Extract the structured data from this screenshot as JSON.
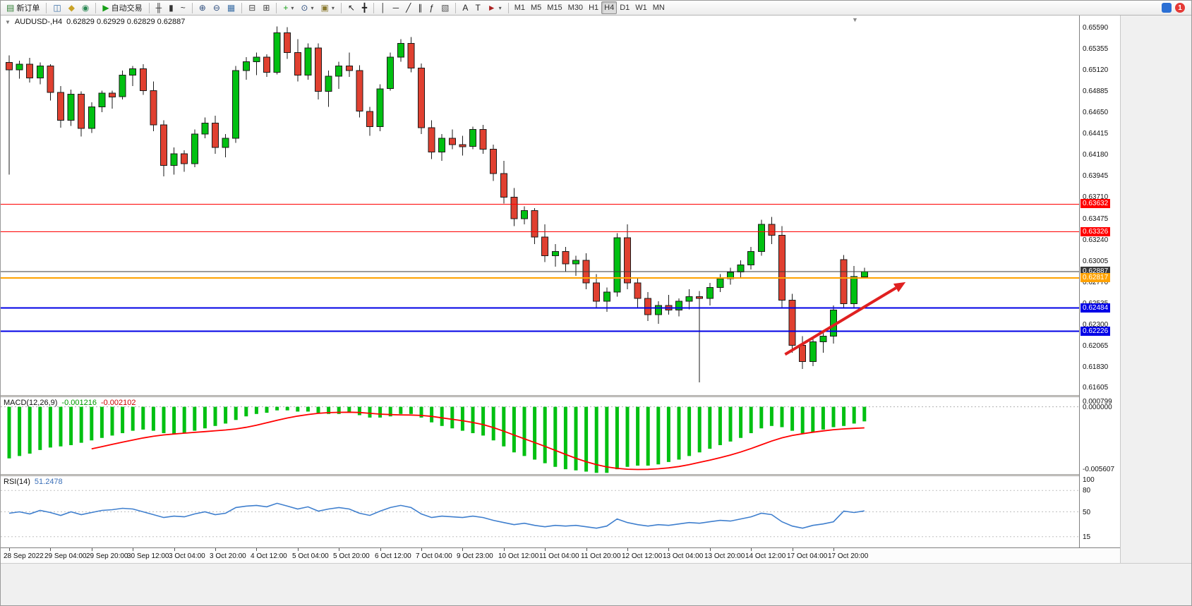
{
  "toolbar": {
    "notification_badge": "1",
    "items": [
      {
        "name": "new-order-button",
        "glyph": "▤",
        "color": "#2e7d32",
        "label": "新订单"
      },
      {
        "type": "sep"
      },
      {
        "name": "chart-window-button",
        "glyph": "◫",
        "color": "#3a6ea5"
      },
      {
        "name": "profiles-button",
        "glyph": "◆",
        "color": "#c9a227"
      },
      {
        "name": "data-window-button",
        "glyph": "◉",
        "color": "#2e8b57"
      },
      {
        "type": "sep"
      },
      {
        "name": "autotrading-button",
        "glyph": "▶",
        "color": "#18a018",
        "label": "自动交易"
      },
      {
        "type": "sep"
      },
      {
        "name": "bar-chart-button",
        "glyph": "╫",
        "color": "#333333"
      },
      {
        "name": "candle-chart-button",
        "glyph": "▮",
        "color": "#333333"
      },
      {
        "name": "line-chart-button",
        "glyph": "~",
        "color": "#333333"
      },
      {
        "type": "sep"
      },
      {
        "name": "zoom-in-button",
        "glyph": "⊕",
        "color": "#2f4f7f"
      },
      {
        "name": "zoom-out-button",
        "glyph": "⊖",
        "color": "#2f4f7f"
      },
      {
        "name": "tile-windows-button",
        "glyph": "▦",
        "color": "#3a6ea5"
      },
      {
        "type": "sep"
      },
      {
        "name": "auto-arrange-button",
        "glyph": "⊟",
        "color": "#444444"
      },
      {
        "name": "grid-button",
        "glyph": "⊞",
        "color": "#444444"
      },
      {
        "type": "sep"
      },
      {
        "name": "indicators-button",
        "glyph": "+",
        "color": "#18a018",
        "dropdown": true
      },
      {
        "name": "periods-button",
        "glyph": "⊙",
        "color": "#2f4f7f",
        "dropdown": true
      },
      {
        "name": "templates-button",
        "glyph": "▣",
        "color": "#8a7a30",
        "dropdown": true
      },
      {
        "type": "sep"
      },
      {
        "name": "cursor-button",
        "glyph": "↖",
        "color": "#222222"
      },
      {
        "name": "crosshair-button",
        "glyph": "╋",
        "color": "#222222"
      },
      {
        "type": "sep"
      },
      {
        "name": "vertical-line-button",
        "glyph": "│",
        "color": "#222222"
      },
      {
        "name": "horizontal-line-button",
        "glyph": "─",
        "color": "#222222"
      },
      {
        "name": "trendline-button",
        "glyph": "╱",
        "color": "#222222"
      },
      {
        "name": "equidistant-channel-button",
        "glyph": "∥",
        "color": "#222222"
      },
      {
        "name": "fibonacci-button",
        "glyph": "ƒ",
        "color": "#222222"
      },
      {
        "name": "shapes-button",
        "glyph": "▧",
        "color": "#555555"
      },
      {
        "type": "sep"
      },
      {
        "name": "text-button",
        "glyph": "A",
        "color": "#222222"
      },
      {
        "name": "text-label-button",
        "glyph": "T",
        "color": "#222222"
      },
      {
        "name": "arrows-button",
        "glyph": "►",
        "color": "#aa2222",
        "dropdown": true
      },
      {
        "type": "sep"
      },
      {
        "name": "tf-m1-button",
        "label": "M1"
      },
      {
        "name": "tf-m5-button",
        "label": "M5"
      },
      {
        "name": "tf-m15-button",
        "label": "M15"
      },
      {
        "name": "tf-m30-button",
        "label": "M30"
      },
      {
        "name": "tf-h1-button",
        "label": "H1"
      },
      {
        "name": "tf-h4-button",
        "label": "H4",
        "active": true
      },
      {
        "name": "tf-d1-button",
        "label": "D1"
      },
      {
        "name": "tf-w1-button",
        "label": "W1"
      },
      {
        "name": "tf-mn-button",
        "label": "MN"
      }
    ]
  },
  "chart_data": {
    "type": "candlestick",
    "symbol": "AUDUSD-",
    "timeframe": "H4",
    "title": {
      "symbol_period": "AUDUSD-,H4",
      "ohlc": "0.62829 0.62929 0.62829 0.62887"
    },
    "colors": {
      "bull": "#00c011",
      "bear": "#e04030",
      "wick": "#1a1a1a",
      "outline": "#1a1a1a",
      "macd": "#00c011",
      "signal": "#ff0000",
      "rsi": "#3f7fce"
    },
    "price_axis": {
      "view_max": 0.6572,
      "view_min": 0.6152,
      "ticks": [
        0.6559,
        0.65355,
        0.6512,
        0.64885,
        0.6465,
        0.64415,
        0.6418,
        0.63945,
        0.6371,
        0.63475,
        0.6324,
        0.63005,
        0.6277,
        0.62535,
        0.623,
        0.62065,
        0.6183,
        0.61605
      ]
    },
    "candles": [
      [
        0.652,
        0.6528,
        0.6396,
        0.6512
      ],
      [
        0.6512,
        0.6522,
        0.6502,
        0.6518
      ],
      [
        0.6518,
        0.6525,
        0.6498,
        0.6503
      ],
      [
        0.6503,
        0.652,
        0.6496,
        0.6516
      ],
      [
        0.6516,
        0.6518,
        0.6478,
        0.6487
      ],
      [
        0.6487,
        0.6494,
        0.6448,
        0.6456
      ],
      [
        0.6456,
        0.649,
        0.645,
        0.6485
      ],
      [
        0.6485,
        0.6488,
        0.6438,
        0.6447
      ],
      [
        0.6447,
        0.6476,
        0.6442,
        0.6471
      ],
      [
        0.6471,
        0.6489,
        0.6465,
        0.6486
      ],
      [
        0.6486,
        0.6489,
        0.6469,
        0.6482
      ],
      [
        0.6482,
        0.6511,
        0.6479,
        0.6506
      ],
      [
        0.6506,
        0.6516,
        0.6494,
        0.6513
      ],
      [
        0.6513,
        0.6518,
        0.6484,
        0.6489
      ],
      [
        0.6489,
        0.6499,
        0.6444,
        0.6451
      ],
      [
        0.6451,
        0.6456,
        0.6394,
        0.6406
      ],
      [
        0.6406,
        0.6426,
        0.6396,
        0.6419
      ],
      [
        0.6419,
        0.6423,
        0.6399,
        0.6408
      ],
      [
        0.6408,
        0.6446,
        0.6404,
        0.6441
      ],
      [
        0.6441,
        0.6459,
        0.6436,
        0.6453
      ],
      [
        0.6453,
        0.6461,
        0.6419,
        0.6426
      ],
      [
        0.6426,
        0.6441,
        0.6415,
        0.6436
      ],
      [
        0.6436,
        0.6516,
        0.6431,
        0.6511
      ],
      [
        0.6511,
        0.6526,
        0.6501,
        0.6521
      ],
      [
        0.6521,
        0.6531,
        0.6506,
        0.6526
      ],
      [
        0.6526,
        0.6529,
        0.6504,
        0.6509
      ],
      [
        0.6509,
        0.656,
        0.6507,
        0.6553
      ],
      [
        0.6553,
        0.6559,
        0.6524,
        0.6531
      ],
      [
        0.6531,
        0.6546,
        0.6499,
        0.6506
      ],
      [
        0.6506,
        0.6541,
        0.6501,
        0.6536
      ],
      [
        0.6536,
        0.6541,
        0.6479,
        0.6488
      ],
      [
        0.6488,
        0.6511,
        0.6471,
        0.6505
      ],
      [
        0.6505,
        0.6521,
        0.6491,
        0.6516
      ],
      [
        0.6516,
        0.6531,
        0.6504,
        0.6511
      ],
      [
        0.6511,
        0.6517,
        0.6459,
        0.6466
      ],
      [
        0.6466,
        0.6471,
        0.6439,
        0.6449
      ],
      [
        0.6449,
        0.6496,
        0.6444,
        0.6491
      ],
      [
        0.6491,
        0.6531,
        0.6489,
        0.6526
      ],
      [
        0.6526,
        0.6546,
        0.6521,
        0.6541
      ],
      [
        0.6541,
        0.6548,
        0.6509,
        0.6514
      ],
      [
        0.6514,
        0.6519,
        0.6441,
        0.6448
      ],
      [
        0.6448,
        0.6456,
        0.6413,
        0.6421
      ],
      [
        0.6421,
        0.6441,
        0.6411,
        0.6436
      ],
      [
        0.6436,
        0.6446,
        0.6424,
        0.6429
      ],
      [
        0.6429,
        0.6439,
        0.6417,
        0.6427
      ],
      [
        0.6427,
        0.6449,
        0.6424,
        0.6446
      ],
      [
        0.6446,
        0.6451,
        0.6419,
        0.6424
      ],
      [
        0.6424,
        0.6429,
        0.6389,
        0.6397
      ],
      [
        0.6397,
        0.6411,
        0.6364,
        0.6371
      ],
      [
        0.6371,
        0.6381,
        0.6339,
        0.6347
      ],
      [
        0.6347,
        0.6361,
        0.6341,
        0.6356
      ],
      [
        0.6356,
        0.6359,
        0.6319,
        0.6327
      ],
      [
        0.6327,
        0.6341,
        0.6299,
        0.6306
      ],
      [
        0.6306,
        0.6319,
        0.6294,
        0.6311
      ],
      [
        0.6311,
        0.6316,
        0.6289,
        0.6297
      ],
      [
        0.6297,
        0.6306,
        0.6284,
        0.6301
      ],
      [
        0.6301,
        0.6309,
        0.6269,
        0.6276
      ],
      [
        0.6276,
        0.6286,
        0.6249,
        0.6256
      ],
      [
        0.6256,
        0.6271,
        0.6244,
        0.6266
      ],
      [
        0.6266,
        0.6331,
        0.6261,
        0.6326
      ],
      [
        0.6326,
        0.6341,
        0.6269,
        0.6276
      ],
      [
        0.6276,
        0.6281,
        0.6249,
        0.6259
      ],
      [
        0.6259,
        0.6266,
        0.6234,
        0.6241
      ],
      [
        0.6241,
        0.6256,
        0.6231,
        0.6251
      ],
      [
        0.6251,
        0.6263,
        0.6241,
        0.6246
      ],
      [
        0.6246,
        0.6259,
        0.6239,
        0.6256
      ],
      [
        0.6256,
        0.6269,
        0.6247,
        0.6261
      ],
      [
        0.6261,
        0.6267,
        0.6166,
        0.6259
      ],
      [
        0.6259,
        0.6276,
        0.6251,
        0.6271
      ],
      [
        0.6271,
        0.6286,
        0.6266,
        0.6281
      ],
      [
        0.6281,
        0.6293,
        0.6274,
        0.6288
      ],
      [
        0.6288,
        0.6301,
        0.6281,
        0.6296
      ],
      [
        0.6296,
        0.6316,
        0.6291,
        0.6311
      ],
      [
        0.6311,
        0.6346,
        0.6306,
        0.6341
      ],
      [
        0.6341,
        0.6349,
        0.6319,
        0.6329
      ],
      [
        0.6329,
        0.6339,
        0.6249,
        0.6257
      ],
      [
        0.6257,
        0.6264,
        0.6199,
        0.6207
      ],
      [
        0.6207,
        0.6217,
        0.6181,
        0.6189
      ],
      [
        0.6189,
        0.6216,
        0.6184,
        0.6211
      ],
      [
        0.6211,
        0.6223,
        0.6199,
        0.6217
      ],
      [
        0.6217,
        0.6251,
        0.6209,
        0.6246
      ],
      [
        0.6302,
        0.6307,
        0.6248,
        0.6253
      ],
      [
        0.6253,
        0.6295,
        0.6249,
        0.6283
      ],
      [
        0.62829,
        0.62929,
        0.62829,
        0.62887
      ]
    ],
    "hlines": [
      {
        "price": 0.63632,
        "label": "0.63632",
        "color": "#ff0000",
        "tag": "#ff0000",
        "width": 1
      },
      {
        "price": 0.63326,
        "label": "0.63326",
        "color": "#ff0000",
        "tag": "#ff0000",
        "width": 1
      },
      {
        "price": 0.62887,
        "label": "0.62887",
        "color": "#3a3a3a",
        "tag": "#3a3a3a",
        "width": 1
      },
      {
        "price": 0.62817,
        "label": "0.62817",
        "color": "#ffa200",
        "tag": "#ffa200",
        "width": 2
      },
      {
        "price": 0.62484,
        "label": "0.62484",
        "color": "#0000e6",
        "tag": "#0000e6",
        "width": 2
      },
      {
        "price": 0.62226,
        "label": "0.62226",
        "color": "#0000e6",
        "tag": "#0000e6",
        "width": 2
      }
    ],
    "arrow": {
      "from": {
        "index": 75.3,
        "price": 0.6197
      },
      "to": {
        "index": 87,
        "price": 0.6277
      },
      "color": "#e02020"
    },
    "macd": {
      "name": "MACD(12,26,9)",
      "value_main": "-0.001216",
      "value_signal": "-0.002102",
      "view_max": 0.000799,
      "view_min": -0.005607,
      "scale": [
        {
          "v": 0.000799,
          "t": "0.000799"
        },
        {
          "v": 0,
          "t": "0.000000"
        },
        {
          "v": -0.005607,
          "t": "-0.005607"
        }
      ],
      "signal_period": 9,
      "values": [
        -0.0043,
        -0.0041,
        -0.0039,
        -0.0036,
        -0.0034,
        -0.0033,
        -0.0032,
        -0.003,
        -0.0028,
        -0.0026,
        -0.0024,
        -0.0022,
        -0.002,
        -0.0019,
        -0.002,
        -0.0022,
        -0.0023,
        -0.0022,
        -0.002,
        -0.0018,
        -0.0016,
        -0.0014,
        -0.0011,
        -0.0008,
        -0.0006,
        -0.0005,
        -0.0003,
        -0.0003,
        -0.0004,
        -0.0004,
        -0.0005,
        -0.0006,
        -0.0006,
        -0.0005,
        -0.0007,
        -0.0009,
        -0.0009,
        -0.0008,
        -0.0006,
        -0.0006,
        -0.0009,
        -0.0013,
        -0.0016,
        -0.0018,
        -0.002,
        -0.0022,
        -0.0024,
        -0.0028,
        -0.0033,
        -0.0038,
        -0.0041,
        -0.0044,
        -0.0047,
        -0.005,
        -0.0052,
        -0.0053,
        -0.0054,
        -0.0055,
        -0.0055,
        -0.0052,
        -0.005,
        -0.0049,
        -0.0049,
        -0.0048,
        -0.0046,
        -0.0044,
        -0.0041,
        -0.0038,
        -0.0035,
        -0.0032,
        -0.0029,
        -0.0026,
        -0.0022,
        -0.0018,
        -0.0016,
        -0.0017,
        -0.002,
        -0.0022,
        -0.0021,
        -0.0019,
        -0.0017,
        -0.0016,
        -0.0014,
        -0.001216
      ]
    },
    "rsi": {
      "name": "RSI(14)",
      "value": "51.2478",
      "levels": [
        80,
        50,
        15
      ],
      "scale": [
        {
          "v": 100,
          "t": "100"
        },
        {
          "v": 80,
          "t": "80"
        },
        {
          "v": 50,
          "t": "50"
        },
        {
          "v": 15,
          "t": "15"
        }
      ],
      "values": [
        48,
        50,
        47,
        52,
        49,
        45,
        50,
        46,
        49,
        52,
        53,
        55,
        54,
        50,
        46,
        42,
        44,
        43,
        47,
        50,
        46,
        48,
        56,
        58,
        59,
        57,
        62,
        58,
        54,
        57,
        51,
        54,
        56,
        54,
        48,
        45,
        51,
        56,
        59,
        56,
        47,
        42,
        44,
        43,
        42,
        44,
        42,
        38,
        35,
        32,
        34,
        31,
        29,
        31,
        30,
        31,
        29,
        27,
        30,
        40,
        35,
        32,
        30,
        32,
        31,
        33,
        35,
        34,
        36,
        38,
        37,
        40,
        43,
        48,
        46,
        36,
        30,
        27,
        31,
        33,
        36,
        51,
        49,
        51.2478
      ]
    },
    "time_axis": [
      "28 Sep 2022",
      "29 Sep 04:00",
      "29 Sep 20:00",
      "30 Sep 12:00",
      "3 Oct 04:00",
      "3 Oct 20:00",
      "4 Oct 12:00",
      "5 Oct 04:00",
      "5 Oct 20:00",
      "6 Oct 12:00",
      "7 Oct 04:00",
      "9 Oct 23:00",
      "10 Oct 12:00",
      "11 Oct 04:00",
      "11 Oct 20:00",
      "12 Oct 12:00",
      "13 Oct 04:00",
      "13 Oct 20:00",
      "14 Oct 12:00",
      "17 Oct 04:00",
      "17 Oct 20:00"
    ]
  }
}
